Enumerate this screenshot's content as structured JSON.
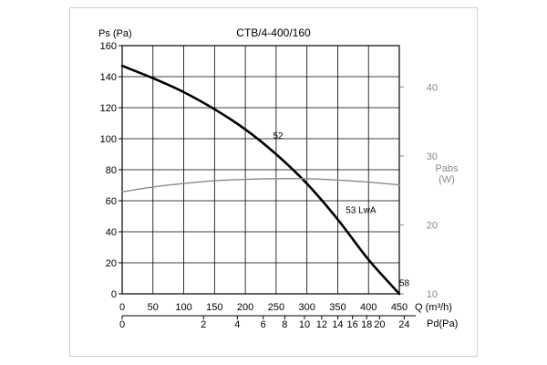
{
  "chart_data": {
    "type": "line",
    "title": "CTB/4-400/160",
    "ylabel": "Ps (Pa)",
    "y2label_line1": "Pabs",
    "y2label_line2": "(W)",
    "xlabel": "Q (m³/h)",
    "x2label": "Pd(Pa)",
    "xlim": [
      0,
      450
    ],
    "ylim": [
      0,
      160
    ],
    "y2lim": [
      10,
      46
    ],
    "grid": true,
    "x_ticks": [
      0,
      50,
      100,
      150,
      200,
      250,
      300,
      350,
      400,
      450
    ],
    "y_ticks": [
      0,
      20,
      40,
      60,
      80,
      100,
      120,
      140,
      160
    ],
    "y2_ticks": [
      10,
      20,
      30,
      40
    ],
    "pd_ticks": [
      {
        "label": "0",
        "q": 0
      },
      {
        "label": "2",
        "q": 132
      },
      {
        "label": "4",
        "q": 187
      },
      {
        "label": "6",
        "q": 229
      },
      {
        "label": "8",
        "q": 264
      },
      {
        "label": "10",
        "q": 296
      },
      {
        "label": "12",
        "q": 324
      },
      {
        "label": "14",
        "q": 350
      },
      {
        "label": "16",
        "q": 374
      },
      {
        "label": "18",
        "q": 397
      },
      {
        "label": "20",
        "q": 418
      },
      {
        "label": "24",
        "q": 458
      }
    ],
    "series": [
      {
        "axis": "y",
        "color": "#000000",
        "x": [
          0,
          50,
          100,
          150,
          200,
          250,
          300,
          350,
          400,
          450
        ],
        "y": [
          147,
          139,
          130,
          119,
          106,
          90,
          71,
          48,
          22,
          0
        ]
      },
      {
        "axis": "y2",
        "color": "#8a8a8a",
        "x": [
          0,
          50,
          100,
          150,
          200,
          250,
          300,
          350,
          400,
          450
        ],
        "y": [
          24.8,
          25.5,
          26.0,
          26.4,
          26.6,
          26.7,
          26.7,
          26.5,
          26.2,
          25.8
        ]
      }
    ],
    "annotations": [
      {
        "text": "52",
        "x": 245,
        "y": 100
      },
      {
        "text": "53 LwA",
        "x": 363,
        "y": 52
      },
      {
        "text": "58",
        "x": 450,
        "y": 5
      }
    ]
  }
}
